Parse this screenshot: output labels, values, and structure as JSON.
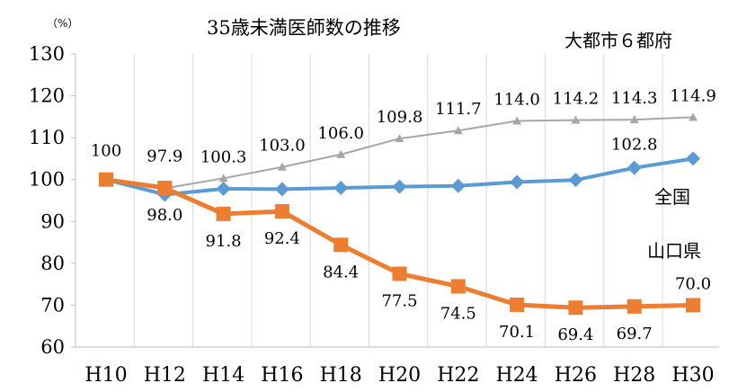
{
  "chart_data": {
    "type": "line",
    "title": "35歳未満医師数の推移",
    "y_unit": "（%）",
    "ylim": [
      60,
      130
    ],
    "yticks": [
      60,
      70,
      80,
      90,
      100,
      110,
      120,
      130
    ],
    "grid": "vertical",
    "categories": [
      "H10",
      "H12",
      "H14",
      "H16",
      "H18",
      "H20",
      "H22",
      "H24",
      "H26",
      "H28",
      "H30"
    ],
    "series": [
      {
        "name": "大都市６都府",
        "color": "#a6a6a6",
        "marker": "triangle",
        "values": [
          100,
          97.9,
          100.3,
          103.0,
          106.0,
          109.8,
          111.7,
          114.0,
          114.2,
          114.3,
          114.9
        ],
        "labels": [
          "",
          "97.9",
          "100.3",
          "103.0",
          "106.0",
          "109.8",
          "111.7",
          "114.0",
          "114.2",
          "114.3",
          "114.9"
        ]
      },
      {
        "name": "全国",
        "color": "#5b9bd5",
        "marker": "diamond",
        "values": [
          100,
          96.4,
          97.8,
          97.7,
          98.0,
          98.3,
          98.5,
          99.4,
          99.9,
          102.8,
          105.0
        ],
        "labels": [
          "",
          "",
          "",
          "",
          "",
          "",
          "",
          "",
          "",
          "102.8",
          ""
        ]
      },
      {
        "name": "山口県",
        "color": "#ed7d31",
        "marker": "square",
        "values": [
          100,
          98.0,
          91.8,
          92.4,
          84.4,
          77.5,
          74.5,
          70.1,
          69.4,
          69.7,
          70.0
        ],
        "labels": [
          "",
          "98.0",
          "91.8",
          "92.4",
          "84.4",
          "77.5",
          "74.5",
          "70.1",
          "69.4",
          "69.7",
          "70.0"
        ]
      }
    ],
    "start_label": "100"
  }
}
